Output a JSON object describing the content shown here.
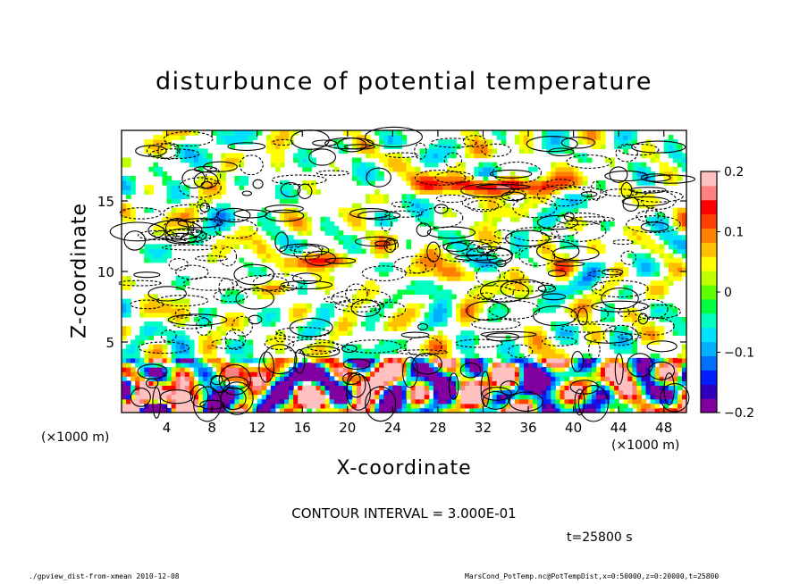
{
  "chart_data": {
    "type": "heatmap",
    "title": "disturbunce of potential temperature",
    "xlabel": "X-coordinate",
    "ylabel": "Z-coordinate",
    "x_unit": "(×1000 m)",
    "y_unit": "(×1000 m)",
    "xlim": [
      0,
      50
    ],
    "ylim": [
      0,
      20
    ],
    "x_ticks": [
      4,
      8,
      12,
      16,
      20,
      24,
      28,
      32,
      36,
      40,
      44,
      48
    ],
    "y_ticks": [
      5,
      10,
      15
    ],
    "colorbar": {
      "range": [
        -0.2,
        0.2
      ],
      "ticks": [
        {
          "value": 0.2,
          "label": "0.2"
        },
        {
          "value": 0.1,
          "label": "0.1"
        },
        {
          "value": 0,
          "label": "0"
        },
        {
          "value": -0.1,
          "label": "−0.1"
        },
        {
          "value": -0.2,
          "label": "−0.2"
        }
      ],
      "colors": [
        "#8000a0",
        "#3000c0",
        "#0020ff",
        "#0070ff",
        "#00b0ff",
        "#00e0ff",
        "#00ffc0",
        "#00ff40",
        "#60ff00",
        "#c0ff00",
        "#ffff00",
        "#ffc000",
        "#ff8000",
        "#ff4000",
        "#ff0000",
        "#ff8080",
        "#ffc0c0"
      ]
    },
    "contour_interval": "CONTOUR INTERVAL = 3.000E-01",
    "time_label": "t=25800 s"
  },
  "footer": {
    "left": "./gpview_dist-from-xmean  2010-12-08",
    "right": "MarsCond_PotTemp.nc@PotTempDist,x=0:50000,z=0:20000,t=25800"
  }
}
